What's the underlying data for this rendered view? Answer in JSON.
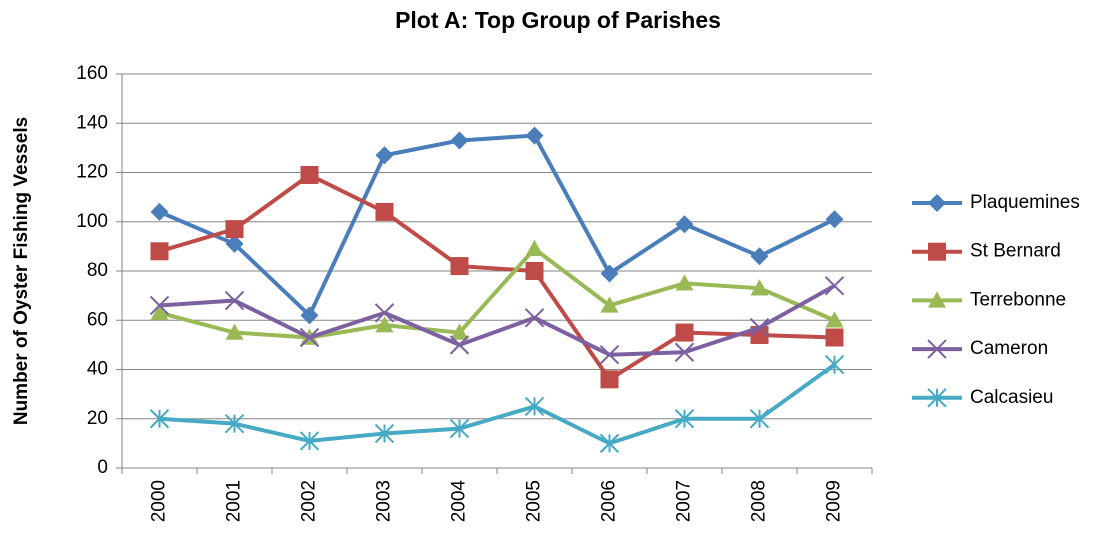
{
  "chart_data": {
    "type": "line",
    "title": "Plot A: Top Group of Parishes",
    "y_label": "Number of Oyster Fishing Vessels",
    "categories": [
      "2000",
      "2001",
      "2002",
      "2003",
      "2004",
      "2005",
      "2006",
      "2007",
      "2008",
      "2009"
    ],
    "series": [
      {
        "name": "Plaquemines",
        "color": "#4a7ebb",
        "marker": "diamond",
        "values": [
          104,
          91,
          62,
          127,
          133,
          135,
          79,
          99,
          86,
          101
        ]
      },
      {
        "name": "St Bernard",
        "color": "#be4b48",
        "marker": "square",
        "values": [
          88,
          97,
          119,
          104,
          82,
          80,
          36,
          55,
          54,
          53
        ]
      },
      {
        "name": "Terrebonne",
        "color": "#98b954",
        "marker": "triangle",
        "values": [
          63,
          55,
          53,
          58,
          55,
          89,
          66,
          75,
          73,
          60
        ]
      },
      {
        "name": "Cameron",
        "color": "#7d60a0",
        "marker": "x",
        "values": [
          66,
          68,
          53,
          63,
          50,
          61,
          46,
          47,
          57,
          74
        ]
      },
      {
        "name": "Calcasieu",
        "color": "#46aac5",
        "marker": "star",
        "values": [
          20,
          18,
          11,
          14,
          16,
          25,
          10,
          20,
          20,
          42
        ]
      }
    ],
    "ylim": [
      0,
      160
    ],
    "yticks": [
      0,
      20,
      40,
      60,
      80,
      100,
      120,
      140,
      160
    ],
    "grid": true,
    "legend": "right"
  }
}
